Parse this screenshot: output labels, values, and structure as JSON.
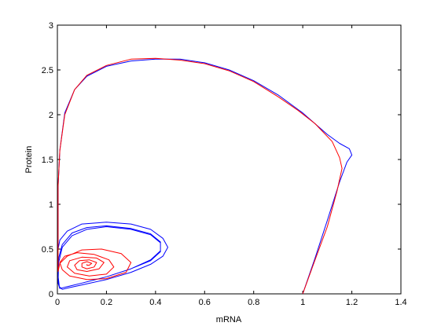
{
  "chart_data": {
    "type": "line",
    "title": "",
    "xlabel": "mRNA",
    "ylabel": "Protein",
    "xlim": [
      0,
      1.4
    ],
    "ylim": [
      0,
      3
    ],
    "xticks": [
      "0",
      "0.2",
      "0.4",
      "0.6",
      "0.8",
      "1",
      "1.2",
      "1.4"
    ],
    "yticks": [
      "0",
      "0.5",
      "1",
      "1.5",
      "2",
      "2.5",
      "3"
    ],
    "grid": false,
    "legend": "none",
    "series": [
      {
        "color": "#0000ff",
        "style": "trajectory from (1,0) converging to a limit cycle",
        "x": [
          1.0,
          1.05,
          1.1,
          1.15,
          1.18,
          1.2,
          1.19,
          1.15,
          1.1,
          1.0,
          0.9,
          0.8,
          0.7,
          0.6,
          0.5,
          0.4,
          0.3,
          0.2,
          0.12,
          0.07,
          0.03,
          0.01,
          0.003,
          0.003,
          0.01,
          0.04,
          0.1,
          0.2,
          0.3,
          0.38,
          0.43,
          0.45,
          0.43,
          0.38,
          0.3,
          0.2,
          0.1,
          0.05,
          0.02,
          0.008,
          0.003,
          0.005,
          0.02,
          0.06,
          0.12,
          0.2,
          0.3,
          0.38,
          0.42,
          0.42,
          0.38,
          0.3,
          0.2,
          0.1,
          0.04,
          0.01,
          0.003,
          0.005,
          0.02,
          0.06,
          0.12,
          0.2,
          0.3,
          0.38,
          0.42,
          0.42,
          0.38,
          0.3,
          0.2,
          0.1,
          0.04,
          0.01,
          0.003
        ],
        "y": [
          0.0,
          0.4,
          0.82,
          1.25,
          1.47,
          1.55,
          1.62,
          1.68,
          1.78,
          2.02,
          2.22,
          2.38,
          2.5,
          2.58,
          2.62,
          2.62,
          2.6,
          2.54,
          2.43,
          2.28,
          2.02,
          1.6,
          1.2,
          0.5,
          0.6,
          0.7,
          0.78,
          0.8,
          0.78,
          0.72,
          0.62,
          0.52,
          0.42,
          0.33,
          0.24,
          0.16,
          0.1,
          0.07,
          0.05,
          0.08,
          0.2,
          0.4,
          0.55,
          0.68,
          0.74,
          0.76,
          0.73,
          0.67,
          0.58,
          0.48,
          0.38,
          0.28,
          0.19,
          0.12,
          0.08,
          0.06,
          0.12,
          0.35,
          0.52,
          0.65,
          0.72,
          0.75,
          0.72,
          0.66,
          0.57,
          0.47,
          0.37,
          0.28,
          0.19,
          0.12,
          0.08,
          0.06,
          0.12
        ]
      },
      {
        "color": "#ff0000",
        "style": "trajectory from (1,0) spiralling into a fixed point",
        "x": [
          1.0,
          1.05,
          1.1,
          1.14,
          1.16,
          1.15,
          1.12,
          1.05,
          0.98,
          0.9,
          0.8,
          0.7,
          0.6,
          0.5,
          0.4,
          0.3,
          0.2,
          0.12,
          0.07,
          0.03,
          0.01,
          0.003,
          0.003,
          0.01,
          0.04,
          0.1,
          0.18,
          0.26,
          0.3,
          0.28,
          0.2,
          0.12,
          0.05,
          0.02,
          0.01,
          0.03,
          0.08,
          0.15,
          0.21,
          0.23,
          0.2,
          0.13,
          0.07,
          0.04,
          0.05,
          0.1,
          0.16,
          0.19,
          0.17,
          0.12,
          0.08,
          0.07,
          0.09,
          0.13,
          0.16,
          0.15,
          0.12,
          0.1,
          0.1,
          0.12,
          0.14,
          0.13,
          0.12,
          0.12
        ],
        "y": [
          0.0,
          0.38,
          0.75,
          1.15,
          1.4,
          1.52,
          1.7,
          1.9,
          2.05,
          2.2,
          2.37,
          2.49,
          2.57,
          2.61,
          2.63,
          2.62,
          2.55,
          2.44,
          2.28,
          2.0,
          1.6,
          1.2,
          0.25,
          0.34,
          0.42,
          0.49,
          0.5,
          0.45,
          0.35,
          0.24,
          0.17,
          0.16,
          0.2,
          0.27,
          0.35,
          0.42,
          0.46,
          0.44,
          0.38,
          0.3,
          0.22,
          0.2,
          0.23,
          0.3,
          0.37,
          0.41,
          0.4,
          0.35,
          0.28,
          0.25,
          0.27,
          0.32,
          0.37,
          0.38,
          0.35,
          0.3,
          0.28,
          0.3,
          0.34,
          0.36,
          0.34,
          0.32,
          0.32,
          0.33
        ]
      }
    ]
  }
}
